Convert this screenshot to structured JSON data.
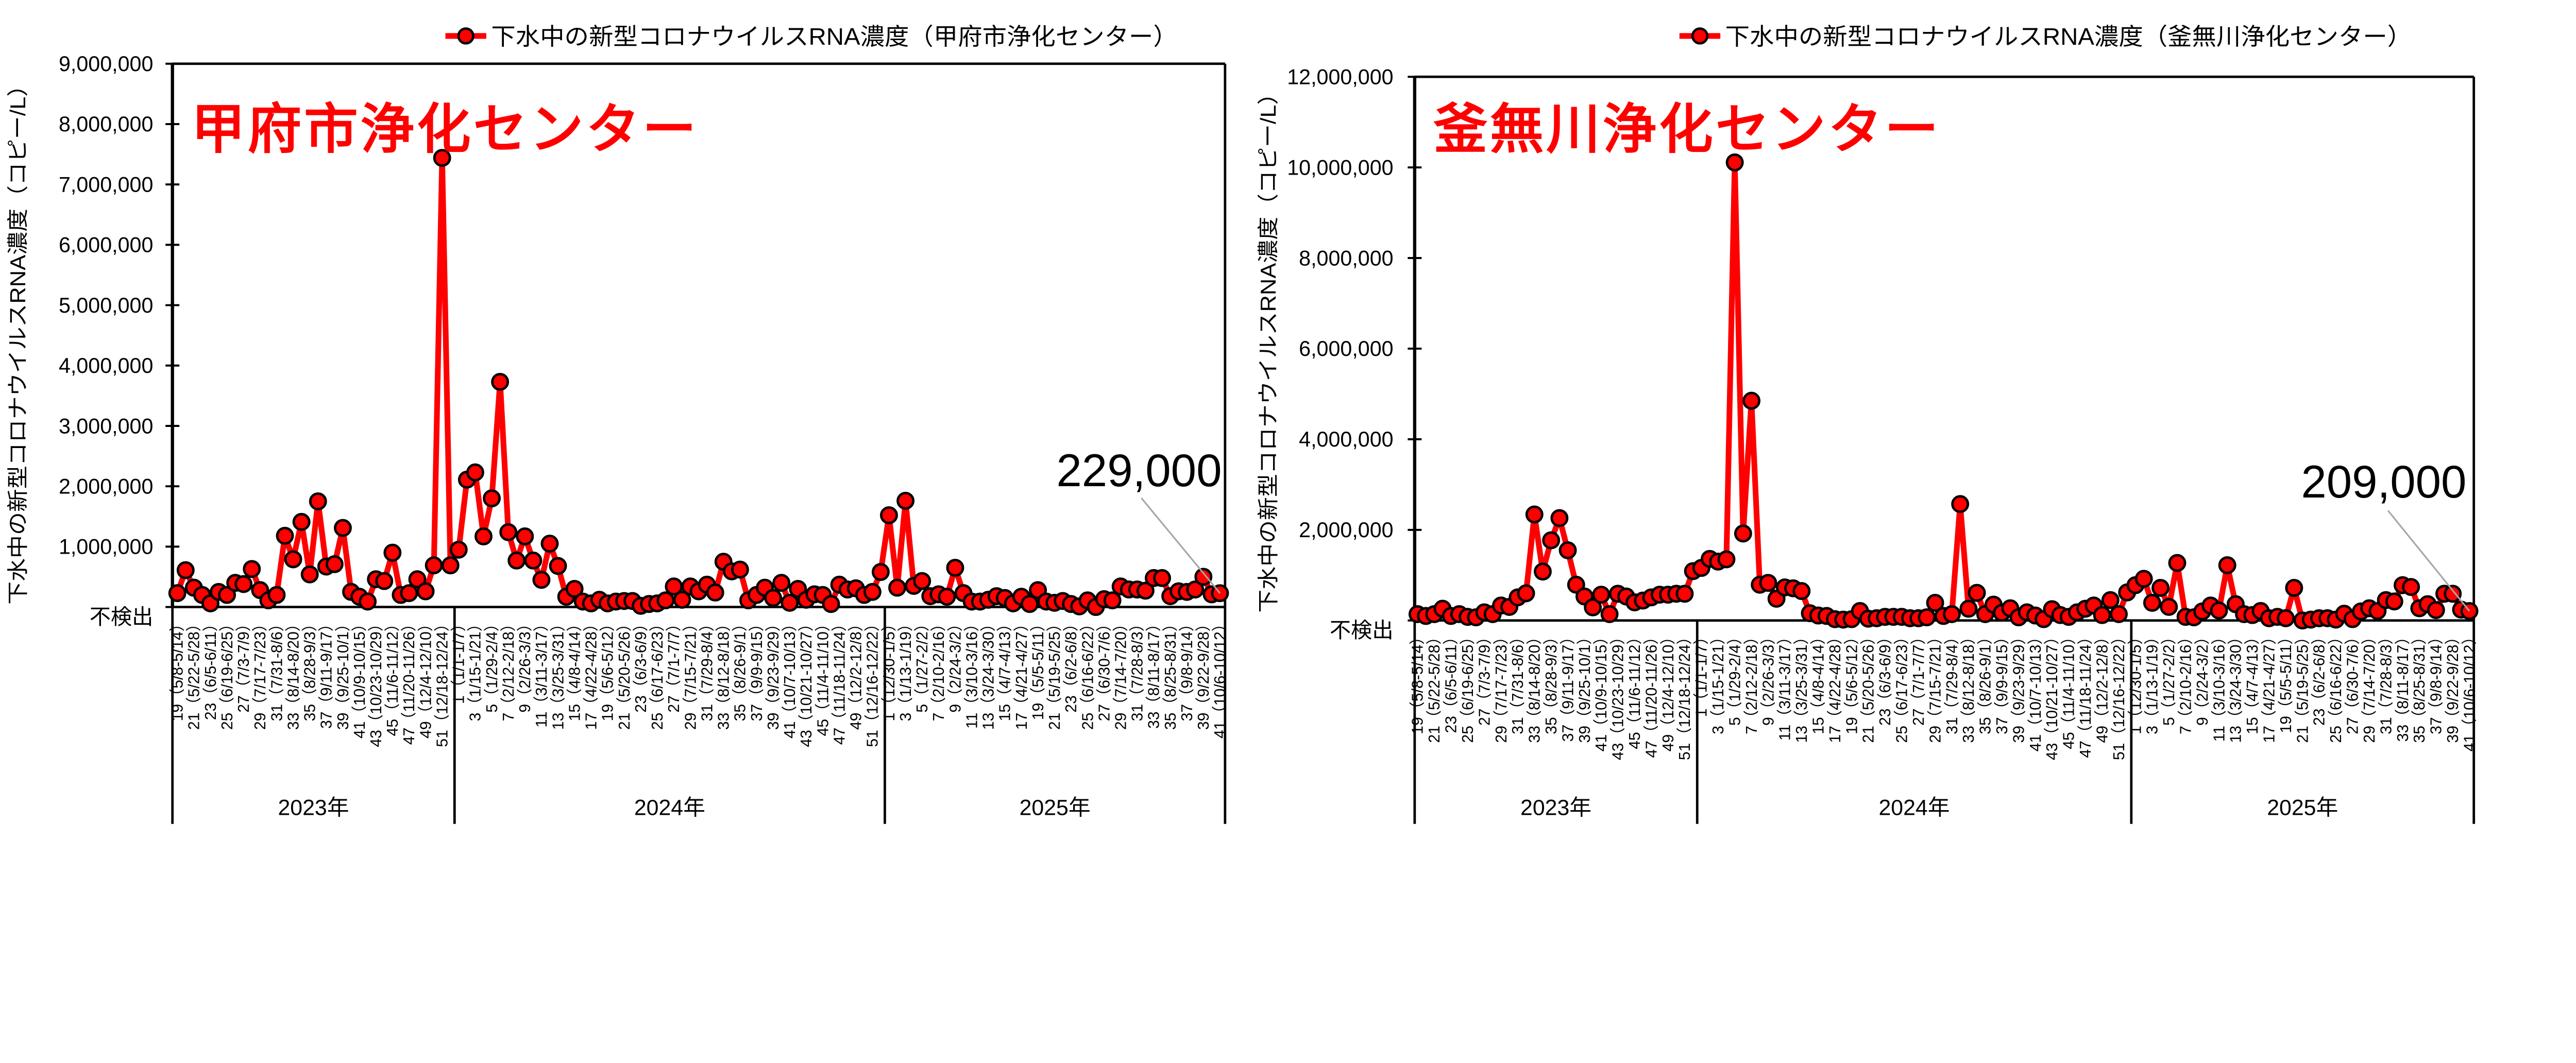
{
  "chart_data": [
    {
      "type": "line",
      "title": "甲府市浄化センター",
      "legend": "下水中の新型コロナウイルスRNA濃度（甲府市浄化センター）",
      "legend_position": "top",
      "ylabel": "下水中の新型コロナウイルスRNA濃度（コピー/L）",
      "xlabel": "",
      "ylim": [
        0,
        9000000
      ],
      "grid": false,
      "series_color": "#ff0000",
      "marker_edge_color": "#000000",
      "y_ticks": [
        {
          "value": 0,
          "label": "不検出"
        },
        {
          "value": 1000000,
          "label": "1,000,000"
        },
        {
          "value": 2000000,
          "label": "2,000,000"
        },
        {
          "value": 3000000,
          "label": "3,000,000"
        },
        {
          "value": 4000000,
          "label": "4,000,000"
        },
        {
          "value": 5000000,
          "label": "5,000,000"
        },
        {
          "value": 6000000,
          "label": "6,000,000"
        },
        {
          "value": 7000000,
          "label": "7,000,000"
        },
        {
          "value": 8000000,
          "label": "8,000,000"
        },
        {
          "value": 9000000,
          "label": "9,000,000"
        }
      ],
      "year_groups": [
        {
          "label": "2023年",
          "count": 34
        },
        {
          "label": "2024年",
          "count": 52
        },
        {
          "label": "2025年",
          "count": 41
        }
      ],
      "tick_label_every": 2,
      "tick_labels": [
        "19（5/8-5/14）",
        "21（5/22-5/28）",
        "23（6/5-6/11）",
        "25（6/19-6/25）",
        "27（7/3-7/9）",
        "29（7/17-7/23）",
        "31（7/31-8/6）",
        "33（8/14-8/20）",
        "35（8/28-9/3）",
        "37（9/11-9/17）",
        "39（9/25-10/1）",
        "41（10/9-10/15）",
        "43（10/23-10/29）",
        "45（11/6-11/12）",
        "47（11/20-11/26）",
        "49（12/4-12/10）",
        "51（12/18-12/24）",
        "1（1/1-1/7）",
        "3（1/15-1/21）",
        "5（1/29-2/4）",
        "7（2/12-2/18）",
        "9（2/26-3/3）",
        "11（3/11-3/17）",
        "13（3/25-3/31）",
        "15（4/8-4/14）",
        "17（4/22-4/28）",
        "19（5/6-5/12）",
        "21（5/20-5/26）",
        "23（6/3-6/9）",
        "25（6/17-6/23）",
        "27（7/1-7/7）",
        "29（7/15-7/21）",
        "31（7/29-8/4）",
        "33（8/12-8/18）",
        "35（8/26-9/1）",
        "37（9/9-9/15）",
        "39（9/23-9/29）",
        "41（10/7-10/13）",
        "43（10/21-10/27）",
        "45（11/4-11/10）",
        "47（11/18-11/24）",
        "49（12/2-12/8）",
        "51（12/16-12/22）",
        "1（12/30-1/5）",
        "3（1/13-1/19）",
        "5（1/27-2/2）",
        "7（2/10-2/16）",
        "9（2/24-3/2）",
        "11（3/10-3/16）",
        "13（3/24-3/30）",
        "15（4/7-4/13）",
        "17（4/21-4/27）",
        "19（5/5-5/11）",
        "21（5/19-5/25）",
        "23（6/2-6/8）",
        "25（6/16-6/22）",
        "27（6/30-7/6）",
        "29（7/14-7/20）",
        "31（7/28-8/3）",
        "33（8/11-8/17）",
        "35（8/25-8/31）",
        "37（9/8-9/14）",
        "39（9/22-9/28）",
        "41（10/6-10/12）"
      ],
      "values": [
        230000,
        610000,
        320000,
        200000,
        60000,
        250000,
        200000,
        400000,
        380000,
        630000,
        280000,
        110000,
        200000,
        1180000,
        790000,
        1410000,
        540000,
        1750000,
        670000,
        710000,
        1310000,
        250000,
        170000,
        90000,
        460000,
        430000,
        900000,
        200000,
        230000,
        460000,
        260000,
        690000,
        7440000,
        690000,
        950000,
        2110000,
        2230000,
        1170000,
        1800000,
        3730000,
        1240000,
        770000,
        1170000,
        770000,
        450000,
        1050000,
        680000,
        170000,
        300000,
        90000,
        60000,
        120000,
        60000,
        90000,
        100000,
        100000,
        20000,
        50000,
        60000,
        110000,
        340000,
        120000,
        340000,
        260000,
        370000,
        240000,
        750000,
        590000,
        620000,
        110000,
        200000,
        320000,
        150000,
        400000,
        70000,
        300000,
        120000,
        210000,
        200000,
        50000,
        370000,
        290000,
        310000,
        200000,
        250000,
        580000,
        1520000,
        320000,
        1760000,
        350000,
        430000,
        180000,
        210000,
        170000,
        650000,
        230000,
        90000,
        90000,
        120000,
        180000,
        150000,
        60000,
        170000,
        50000,
        280000,
        90000,
        70000,
        100000,
        50000,
        10000,
        110000,
        0,
        130000,
        110000,
        340000,
        290000,
        290000,
        270000,
        480000,
        480000,
        180000,
        260000,
        250000,
        290000,
        500000,
        210000,
        229000
      ],
      "annotation": {
        "label": "229,000",
        "value": 229000,
        "point": "last"
      }
    },
    {
      "type": "line",
      "title": "釜無川浄化センター",
      "legend": "下水中の新型コロナウイルスRNA濃度（釜無川浄化センター）",
      "legend_position": "top",
      "ylabel": "下水中の新型コロナウイルスRNA濃度（コピー/L）",
      "xlabel": "",
      "ylim": [
        0,
        12000000
      ],
      "grid": false,
      "series_color": "#ff0000",
      "marker_edge_color": "#000000",
      "y_ticks": [
        {
          "value": 0,
          "label": "不検出"
        },
        {
          "value": 2000000,
          "label": "2,000,000"
        },
        {
          "value": 4000000,
          "label": "4,000,000"
        },
        {
          "value": 6000000,
          "label": "6,000,000"
        },
        {
          "value": 8000000,
          "label": "8,000,000"
        },
        {
          "value": 10000000,
          "label": "10,000,000"
        },
        {
          "value": 12000000,
          "label": "12,000,000"
        }
      ],
      "year_groups": [
        {
          "label": "2023年",
          "count": 34
        },
        {
          "label": "2024年",
          "count": 52
        },
        {
          "label": "2025年",
          "count": 41
        }
      ],
      "tick_label_every": 2,
      "tick_labels": [
        "19（5/8-5/14）",
        "21（5/22-5/28）",
        "23（6/5-6/11）",
        "25（6/19-6/25）",
        "27（7/3-7/9）",
        "29（7/17-7/23）",
        "31（7/31-8/6）",
        "33（8/14-8/20）",
        "35（8/28-9/3）",
        "37（9/11-9/17）",
        "39（9/25-10/1）",
        "41（10/9-10/15）",
        "43（10/23-10/29）",
        "45（11/6-11/12）",
        "47（11/20-11/26）",
        "49（12/4-12/10）",
        "51（12/18-12/24）",
        "1（1/1-1/7）",
        "3（1/15-1/21）",
        "5（1/29-2/4）",
        "7（2/12-2/18）",
        "9（2/26-3/3）",
        "11（3/11-3/17）",
        "13（3/25-3/31）",
        "15（4/8-4/14）",
        "17（4/22-4/28）",
        "19（5/6-5/12）",
        "21（5/20-5/26）",
        "23（6/3-6/9）",
        "25（6/17-6/23）",
        "27（7/1-7/7）",
        "29（7/15-7/21）",
        "31（7/29-8/4）",
        "33（8/12-8/18）",
        "35（8/26-9/1）",
        "37（9/9-9/15）",
        "39（9/23-9/29）",
        "41（10/7-10/13）",
        "43（10/21-10/27）",
        "45（11/4-11/10）",
        "47（11/18-11/24）",
        "49（12/2-12/8）",
        "51（12/16-12/22）",
        "1（12/30-1/5）",
        "3（1/13-1/19）",
        "5（1/27-2/2）",
        "7（2/10-2/16）",
        "9（2/24-3/2）",
        "11（3/10-3/16）",
        "13（3/24-3/30）",
        "15（4/7-4/13）",
        "17（4/21-4/27）",
        "19（5/5-5/11）",
        "21（5/19-5/25）",
        "23（6/2-6/8）",
        "25（6/16-6/22）",
        "27（6/30-7/6）",
        "29（7/14-7/20）",
        "31（7/28-8/3）",
        "33（8/11-8/17）",
        "35（8/25-8/31）",
        "37（9/8-9/14）",
        "39（9/22-9/28）",
        "41（10/6-10/12）"
      ],
      "values": [
        140000,
        100000,
        140000,
        260000,
        100000,
        140000,
        80000,
        70000,
        180000,
        140000,
        330000,
        300000,
        510000,
        600000,
        2340000,
        1080000,
        1770000,
        2260000,
        1550000,
        790000,
        530000,
        290000,
        570000,
        140000,
        590000,
        530000,
        400000,
        440000,
        510000,
        570000,
        570000,
        590000,
        590000,
        1090000,
        1160000,
        1360000,
        1300000,
        1350000,
        10110000,
        1920000,
        4850000,
        790000,
        830000,
        480000,
        730000,
        710000,
        650000,
        160000,
        110000,
        100000,
        30000,
        20000,
        30000,
        210000,
        40000,
        50000,
        80000,
        80000,
        80000,
        50000,
        50000,
        70000,
        390000,
        100000,
        140000,
        2570000,
        260000,
        610000,
        140000,
        350000,
        170000,
        270000,
        70000,
        180000,
        110000,
        30000,
        250000,
        120000,
        80000,
        180000,
        260000,
        330000,
        120000,
        450000,
        140000,
        620000,
        780000,
        920000,
        390000,
        720000,
        300000,
        1270000,
        80000,
        70000,
        200000,
        330000,
        220000,
        1220000,
        360000,
        140000,
        120000,
        210000,
        50000,
        80000,
        50000,
        720000,
        0,
        20000,
        50000,
        50000,
        20000,
        150000,
        30000,
        200000,
        270000,
        210000,
        450000,
        420000,
        780000,
        740000,
        270000,
        360000,
        230000,
        590000,
        590000,
        240000,
        209000
      ],
      "annotation": {
        "label": "209,000",
        "value": 209000,
        "point": "last"
      }
    }
  ]
}
